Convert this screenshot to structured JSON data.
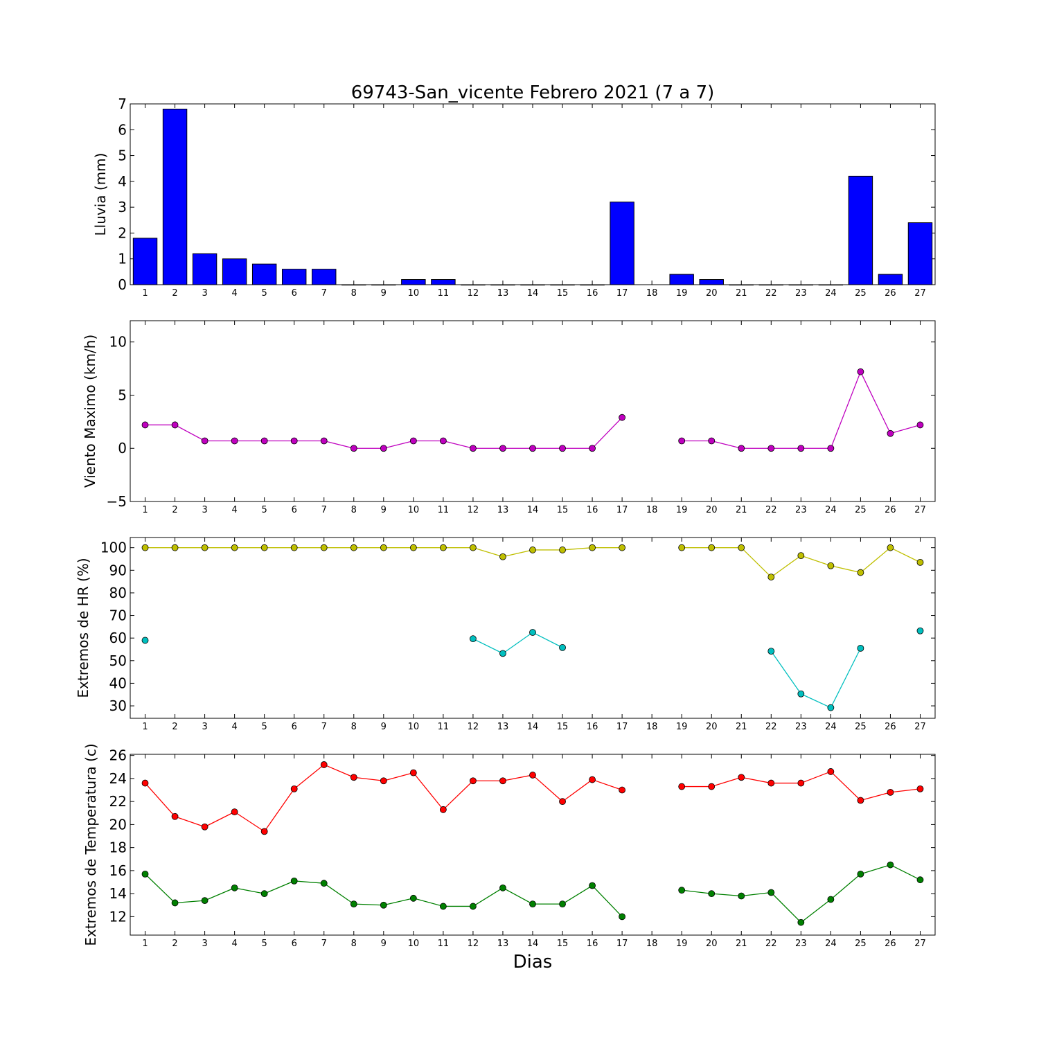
{
  "title": "69743-San_vicente Febrero 2021  (7 a 7)",
  "xlabel": "Dias",
  "colors": {
    "rain_bar": "#0000ff",
    "wind": "#bf00bf",
    "hr_max": "#bfbf00",
    "hr_min": "#00bfbf",
    "temp_max": "#ff0000",
    "temp_min": "#008000"
  },
  "chart_data": [
    {
      "type": "bar",
      "ylabel": "Lluvia (mm)",
      "ylim": [
        0,
        7
      ],
      "yticks": [
        0,
        1,
        2,
        3,
        4,
        5,
        6,
        7
      ],
      "categories": [
        "1",
        "2",
        "3",
        "4",
        "5",
        "6",
        "7",
        "8",
        "9",
        "10",
        "11",
        "12",
        "13",
        "14",
        "15",
        "16",
        "17",
        "18",
        "19",
        "20",
        "21",
        "22",
        "23",
        "24",
        "25",
        "26",
        "27"
      ],
      "series": [
        {
          "values": [
            1.8,
            6.8,
            1.2,
            1.0,
            0.8,
            0.6,
            0.6,
            0,
            0,
            0.2,
            0.2,
            0,
            0,
            0,
            0,
            0,
            3.2,
            null,
            0.4,
            0.2,
            0,
            0,
            0,
            0,
            4.2,
            0.4,
            2.4
          ]
        }
      ]
    },
    {
      "type": "line",
      "ylabel": "Viento Maximo (km/h)",
      "ylim": [
        -5,
        12
      ],
      "yticks": [
        -5,
        0,
        5,
        10
      ],
      "categories": [
        "1",
        "2",
        "3",
        "4",
        "5",
        "6",
        "7",
        "8",
        "9",
        "10",
        "11",
        "12",
        "13",
        "14",
        "15",
        "16",
        "17",
        "18",
        "19",
        "20",
        "21",
        "22",
        "23",
        "24",
        "25",
        "26",
        "27"
      ],
      "series": [
        {
          "values": [
            2.2,
            2.2,
            0.7,
            0.7,
            0.7,
            0.7,
            0.7,
            0,
            0,
            0.7,
            0.7,
            0,
            0,
            0,
            0,
            0,
            2.9,
            null,
            0.7,
            0.7,
            0,
            0,
            0,
            0,
            7.2,
            1.4,
            2.2
          ]
        }
      ]
    },
    {
      "type": "line",
      "ylabel": "Extremos de HR (%)",
      "ylim": [
        24.5,
        104.5
      ],
      "yticks": [
        30,
        40,
        50,
        60,
        70,
        80,
        90,
        100
      ],
      "categories": [
        "1",
        "2",
        "3",
        "4",
        "5",
        "6",
        "7",
        "8",
        "9",
        "10",
        "11",
        "12",
        "13",
        "14",
        "15",
        "16",
        "17",
        "18",
        "19",
        "20",
        "21",
        "22",
        "23",
        "24",
        "25",
        "26",
        "27"
      ],
      "series": [
        {
          "values": [
            100,
            100,
            100,
            100,
            100,
            100,
            100,
            100,
            100,
            100,
            100,
            100,
            96,
            99,
            99,
            100,
            100,
            null,
            100,
            100,
            100,
            87,
            96.5,
            92,
            89,
            100,
            93.5
          ]
        },
        {
          "values": [
            59,
            null,
            null,
            null,
            null,
            null,
            null,
            null,
            null,
            null,
            null,
            59.7,
            53.2,
            62.5,
            55.8,
            null,
            null,
            null,
            null,
            null,
            null,
            54.2,
            35.3,
            29.2,
            55.5,
            null,
            63.2
          ]
        }
      ]
    },
    {
      "type": "line",
      "ylabel": "Extremos de Temperatura (c)",
      "ylim": [
        10.4,
        26.1
      ],
      "yticks": [
        12,
        14,
        16,
        18,
        20,
        22,
        24,
        26
      ],
      "categories": [
        "1",
        "2",
        "3",
        "4",
        "5",
        "6",
        "7",
        "8",
        "9",
        "10",
        "11",
        "12",
        "13",
        "14",
        "15",
        "16",
        "17",
        "18",
        "19",
        "20",
        "21",
        "22",
        "23",
        "24",
        "25",
        "26",
        "27"
      ],
      "series": [
        {
          "values": [
            23.6,
            20.7,
            19.8,
            21.1,
            19.4,
            23.1,
            25.2,
            24.1,
            23.8,
            24.5,
            21.3,
            23.8,
            23.8,
            24.3,
            22.0,
            23.9,
            23.0,
            null,
            23.3,
            23.3,
            24.1,
            23.6,
            23.6,
            24.6,
            22.1,
            22.8,
            23.1
          ]
        },
        {
          "values": [
            15.7,
            13.2,
            13.4,
            14.5,
            14.0,
            15.1,
            14.9,
            13.1,
            13.0,
            13.6,
            12.9,
            12.9,
            14.5,
            13.1,
            13.1,
            14.7,
            12.0,
            null,
            14.3,
            14.0,
            13.8,
            14.1,
            11.5,
            13.5,
            15.7,
            16.5,
            15.2
          ]
        }
      ]
    }
  ]
}
